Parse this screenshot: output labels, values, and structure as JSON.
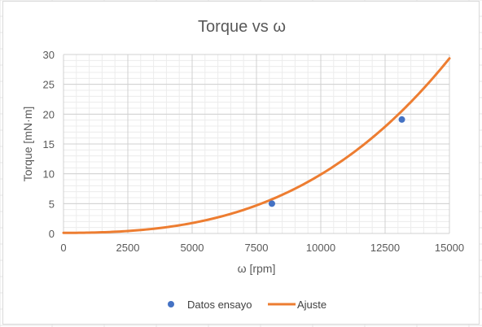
{
  "chart_data": {
    "type": "scatter",
    "title": "Torque vs ω",
    "xlabel": "ω [rpm]",
    "ylabel": "Torque [mN·m]",
    "xlim": [
      0,
      15000
    ],
    "ylim": [
      0,
      30
    ],
    "x_major_ticks": [
      0,
      2500,
      5000,
      7500,
      10000,
      12500,
      15000
    ],
    "x_tick_labels": [
      "0",
      "2500",
      "5000",
      "7500",
      "10000",
      "12500",
      "15000"
    ],
    "x_minor_step": 500,
    "y_ticks": [
      0,
      5,
      10,
      15,
      20,
      25,
      30
    ],
    "y_tick_labels": [
      "0",
      "5",
      "10",
      "15",
      "20",
      "25",
      "30"
    ],
    "y_minor_step": 1,
    "grid": true,
    "legend_position": "bottom",
    "series": [
      {
        "name": "Datos ensayo",
        "kind": "scatter",
        "color": "#4472C4",
        "points": [
          {
            "x": 8100,
            "y": 5.0
          },
          {
            "x": 13150,
            "y": 19.1
          }
        ]
      },
      {
        "name": "Ajuste",
        "kind": "line",
        "color": "#ED7D31",
        "fit": {
          "form": "y = c0 + c2*x^2 + c3*x^3",
          "c0": 0.1,
          "c2": 3.37e-08,
          "c3": 6.42e-12
        }
      }
    ]
  }
}
